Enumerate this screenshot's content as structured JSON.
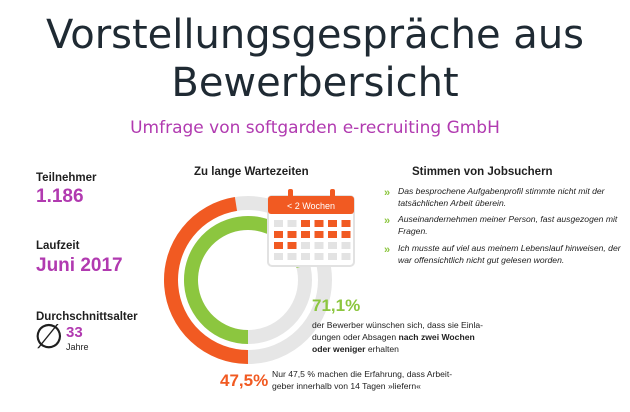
{
  "title_line1": "Vorstellungsgespräche aus",
  "title_line2": "Bewerbersicht",
  "subtitle": "Umfrage von softgarden e-recruiting GmbH",
  "stats": {
    "participants_label": "Teilnehmer",
    "participants_value": "1.186",
    "period_label": "Laufzeit",
    "period_value": "Juni 2017",
    "age_label": "Durchschnittsalter",
    "age_symbol": "∅",
    "age_value": "33",
    "age_unit": "Jahre"
  },
  "chart_data": {
    "type": "pie",
    "title": "Zu lange Wartezeiten",
    "series": [
      {
        "name": "outer",
        "value": 47.5,
        "label": "47,5%",
        "color": "#f15a22"
      },
      {
        "name": "inner",
        "value": 71.1,
        "label": "71,1%",
        "color": "#8cc63f"
      }
    ],
    "track_color": "#e6e6e6"
  },
  "calendar": {
    "label": "< 2 Wochen",
    "color": "#f15a22"
  },
  "green_desc": {
    "line1": "der Bewerber wünschen sich, dass sie Einla-",
    "line2": "dungen oder Absagen ",
    "line2_bold": "nach zwei Wochen",
    "line3_bold": "oder weniger",
    "line3_rest": " erhalten"
  },
  "orange_desc": {
    "line1": "Nur 47,5 % machen die Erfahrung, dass Arbeit-",
    "line2": "geber innerhalb von 14 Tagen »liefern«"
  },
  "voices": {
    "heading": "Stimmen von Jobsuchern",
    "items": [
      "Das besprochene Aufgabenprofil stimmte nicht mit der tatsächlichen Arbeit überein.",
      "Auseinandernehmen meiner Person, fast ausgezogen mit Fragen.",
      "Ich musste auf viel aus meinem Lebenslauf hinweisen, der war offensichtlich nicht gut gelesen worden."
    ],
    "bullet": "»"
  }
}
